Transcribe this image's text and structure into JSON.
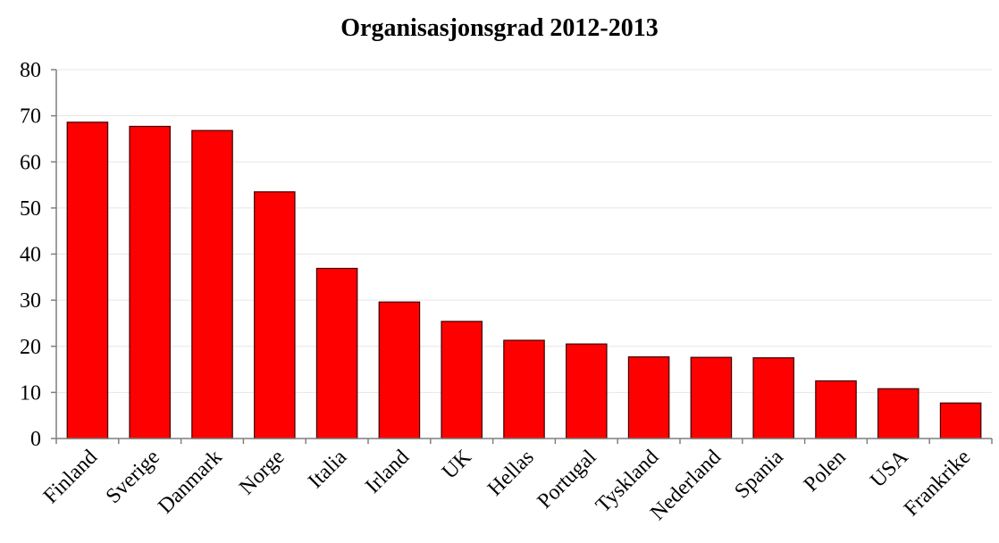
{
  "chart_data": {
    "type": "bar",
    "title": "Organisasjonsgrad 2012-2013",
    "xlabel": "",
    "ylabel": "",
    "categories": [
      "Finland",
      "Sverige",
      "Danmark",
      "Norge",
      "Italia",
      "Irland",
      "UK",
      "Hellas",
      "Portugal",
      "Tyskland",
      "Nederland",
      "Spania",
      "Polen",
      "USA",
      "Frankrike"
    ],
    "values": [
      68.6,
      67.7,
      66.8,
      53.5,
      36.9,
      29.6,
      25.4,
      21.3,
      20.5,
      17.7,
      17.6,
      17.5,
      12.5,
      10.8,
      7.7
    ],
    "ylim": [
      0,
      80
    ],
    "yticks": [
      0,
      10,
      20,
      30,
      40,
      50,
      60,
      70,
      80
    ],
    "grid": true,
    "legend": "none",
    "bar_color": "#ff0000"
  }
}
